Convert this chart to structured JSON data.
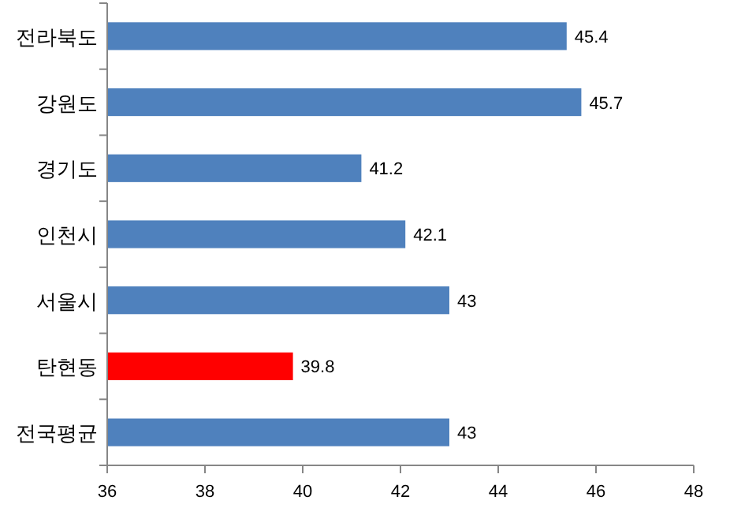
{
  "chart_data": {
    "type": "bar",
    "orientation": "horizontal",
    "categories": [
      "전라북도",
      "강원도",
      "경기도",
      "인천시",
      "서울시",
      "탄현동",
      "전국평균"
    ],
    "values": [
      45.4,
      45.7,
      41.2,
      42.1,
      43,
      39.8,
      43
    ],
    "colors": [
      "#4f81bd",
      "#4f81bd",
      "#4f81bd",
      "#4f81bd",
      "#4f81bd",
      "#ff0000",
      "#4f81bd"
    ],
    "xlim": [
      36,
      48
    ],
    "xticks": [
      36,
      38,
      40,
      42,
      44,
      46,
      48
    ],
    "data_labels": true
  }
}
